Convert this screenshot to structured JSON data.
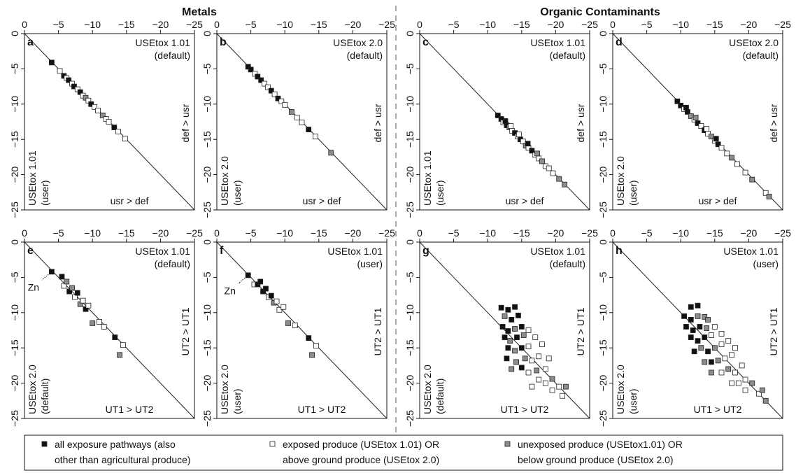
{
  "headings": {
    "left": "Metals",
    "right": "Organic Contaminants"
  },
  "colors": {
    "black": "#111111",
    "white": "#ffffff",
    "gray": "#8c8c8c",
    "line": "#222222"
  },
  "axis": {
    "xticks": [
      0,
      -5,
      -10,
      -15,
      -20,
      -25
    ],
    "yticks": [
      0,
      -5,
      -10,
      -15,
      -20,
      -25
    ],
    "xlim": [
      0,
      -25
    ],
    "ylim": [
      0,
      -25
    ]
  },
  "legend": {
    "items": [
      {
        "marker": "black",
        "line1": "all exposure pathways (also",
        "line2": "other than agricultural produce)"
      },
      {
        "marker": "white",
        "line1": "exposed produce (USEtox 1.01) OR",
        "line2": "above ground produce (USEtox 2.0)"
      },
      {
        "marker": "gray",
        "line1": "unexposed produce (USEtox1.01) OR",
        "line2": "below ground produce (USEtox 2.0)"
      }
    ]
  },
  "chart_data": [
    {
      "type": "scatter",
      "letter": "a",
      "group": "metals",
      "xlabel1": "USEtox 1.01",
      "xlabel2": "(default)",
      "ylabel1": "USEtox 1.01",
      "ylabel2": "(user)",
      "above_label": "def > usr",
      "below_label": "usr > def",
      "points": [
        [
          -4,
          -4.1,
          "black"
        ],
        [
          -5.2,
          -5.3,
          "white"
        ],
        [
          -5.8,
          -6,
          "black"
        ],
        [
          -6.2,
          -6.3,
          "white"
        ],
        [
          -6.5,
          -6.6,
          "black"
        ],
        [
          -7,
          -7.1,
          "white"
        ],
        [
          -7.3,
          -7.5,
          "black"
        ],
        [
          -7.8,
          -7.9,
          "white"
        ],
        [
          -8.2,
          -8.3,
          "black"
        ],
        [
          -8.6,
          -8.8,
          "white"
        ],
        [
          -9,
          -9.1,
          "gray"
        ],
        [
          -9.4,
          -9.5,
          "white"
        ],
        [
          -9.8,
          -10,
          "black"
        ],
        [
          -10.3,
          -10.4,
          "white"
        ],
        [
          -10.8,
          -10.9,
          "white"
        ],
        [
          -11.5,
          -11.6,
          "gray"
        ],
        [
          -12,
          -12.1,
          "white"
        ],
        [
          -12.4,
          -12.5,
          "white"
        ],
        [
          -13.2,
          -13.3,
          "black"
        ],
        [
          -13.8,
          -13.9,
          "white"
        ],
        [
          -14.8,
          -14.9,
          "white"
        ]
      ]
    },
    {
      "type": "scatter",
      "letter": "b",
      "group": "metals",
      "xlabel1": "USEtox 2.0",
      "xlabel2": "(default)",
      "ylabel1": "USEtox 2.0",
      "ylabel2": "(user)",
      "above_label": "def > usr",
      "below_label": "usr > def",
      "points": [
        [
          -4.6,
          -4.7,
          "black"
        ],
        [
          -5,
          -5.1,
          "black"
        ],
        [
          -5.6,
          -5.7,
          "white"
        ],
        [
          -6,
          -6.1,
          "black"
        ],
        [
          -6.5,
          -6.6,
          "black"
        ],
        [
          -7,
          -7.1,
          "white"
        ],
        [
          -7.5,
          -7.6,
          "white"
        ],
        [
          -8,
          -8.1,
          "black"
        ],
        [
          -8.5,
          -8.6,
          "white"
        ],
        [
          -9,
          -9.2,
          "black"
        ],
        [
          -9.5,
          -9.6,
          "white"
        ],
        [
          -10,
          -10.1,
          "white"
        ],
        [
          -11,
          -11.1,
          "gray"
        ],
        [
          -11.8,
          -11.9,
          "white"
        ],
        [
          -12.5,
          -12.6,
          "white"
        ],
        [
          -13.5,
          -13.6,
          "black"
        ],
        [
          -14.5,
          -14.6,
          "white"
        ],
        [
          -16.8,
          -16.9,
          "gray"
        ]
      ]
    },
    {
      "type": "scatter",
      "letter": "c",
      "group": "organic",
      "xlabel1": "USEtox 1.01",
      "xlabel2": "(default)",
      "ylabel1": "USEtox 1.01",
      "ylabel2": "(user)",
      "above_label": "def > usr",
      "below_label": "usr > def",
      "points": [
        [
          -11.5,
          -11.6,
          "black"
        ],
        [
          -12,
          -12.1,
          "black"
        ],
        [
          -12.3,
          -12.6,
          "white"
        ],
        [
          -12.8,
          -13,
          "black"
        ],
        [
          -13.2,
          -13.3,
          "gray"
        ],
        [
          -13.6,
          -13.8,
          "white"
        ],
        [
          -14,
          -14.1,
          "black"
        ],
        [
          -14.4,
          -14.6,
          "white"
        ],
        [
          -14.8,
          -15,
          "black"
        ],
        [
          -15.2,
          -15.3,
          "white"
        ],
        [
          -15.6,
          -15.9,
          "gray"
        ],
        [
          -16,
          -16.2,
          "white"
        ],
        [
          -16.5,
          -16.6,
          "black"
        ],
        [
          -17,
          -17.2,
          "white"
        ],
        [
          -17.5,
          -17.7,
          "white"
        ],
        [
          -18,
          -18.1,
          "gray"
        ],
        [
          -18.5,
          -18.8,
          "white"
        ],
        [
          -19,
          -19.1,
          "white"
        ],
        [
          -19.6,
          -19.8,
          "white"
        ],
        [
          -20.5,
          -20.6,
          "gray"
        ],
        [
          -21.3,
          -21.4,
          "gray"
        ],
        [
          -12.6,
          -12.4,
          "black"
        ],
        [
          -13.4,
          -13.1,
          "white"
        ],
        [
          -14.6,
          -14.3,
          "white"
        ],
        [
          -15.9,
          -15.6,
          "black"
        ],
        [
          -17.3,
          -17,
          "gray"
        ]
      ]
    },
    {
      "type": "scatter",
      "letter": "d",
      "group": "organic",
      "xlabel1": "USEtox 2.0",
      "xlabel2": "(default)",
      "ylabel1": "USEtox 2.0",
      "ylabel2": "(user)",
      "above_label": "def > usr",
      "below_label": "usr > def",
      "points": [
        [
          -9.5,
          -9.6,
          "black"
        ],
        [
          -10,
          -10.2,
          "black"
        ],
        [
          -10.5,
          -10.7,
          "white"
        ],
        [
          -11,
          -11.1,
          "black"
        ],
        [
          -11.5,
          -11.7,
          "gray"
        ],
        [
          -12,
          -12.2,
          "white"
        ],
        [
          -12.5,
          -12.7,
          "black"
        ],
        [
          -13,
          -13.1,
          "white"
        ],
        [
          -13.5,
          -13.7,
          "black"
        ],
        [
          -14,
          -14.2,
          "white"
        ],
        [
          -14.5,
          -14.6,
          "gray"
        ],
        [
          -15,
          -15.2,
          "white"
        ],
        [
          -15.5,
          -15.7,
          "black"
        ],
        [
          -16,
          -16.2,
          "white"
        ],
        [
          -16.8,
          -17,
          "white"
        ],
        [
          -17.5,
          -17.6,
          "gray"
        ],
        [
          -18.3,
          -18.5,
          "white"
        ],
        [
          -19.5,
          -19.7,
          "white"
        ],
        [
          -20.5,
          -20.7,
          "gray"
        ],
        [
          -22.5,
          -22.6,
          "white"
        ],
        [
          -23,
          -23.1,
          "gray"
        ],
        [
          -10.8,
          -10.5,
          "black"
        ],
        [
          -12.2,
          -11.9,
          "gray"
        ],
        [
          -13.8,
          -13.5,
          "white"
        ],
        [
          -15.2,
          -14.9,
          "black"
        ]
      ]
    },
    {
      "type": "scatter",
      "letter": "e",
      "group": "metals",
      "xlabel1": "USEtox 1.01",
      "xlabel2": "(default)",
      "ylabel1": "USEtox 2.0",
      "ylabel2": "(default)",
      "above_label": "UT2 > UT1",
      "below_label": "UT1 > UT2",
      "annotation": "Zn",
      "annotation_point": [
        -4,
        -4.2
      ],
      "points": [
        [
          -4,
          -4.2,
          "black"
        ],
        [
          -5.5,
          -4.9,
          "black"
        ],
        [
          -5.8,
          -6.2,
          "white"
        ],
        [
          -6.2,
          -5.6,
          "gray"
        ],
        [
          -6.6,
          -7,
          "black"
        ],
        [
          -7,
          -6.5,
          "gray"
        ],
        [
          -7.4,
          -7.8,
          "white"
        ],
        [
          -7.8,
          -7.2,
          "black"
        ],
        [
          -8.2,
          -8.8,
          "gray"
        ],
        [
          -8.6,
          -8.3,
          "white"
        ],
        [
          -9,
          -9.5,
          "black"
        ],
        [
          -9.4,
          -9,
          "white"
        ],
        [
          -10,
          -11.5,
          "gray"
        ],
        [
          -11,
          -11.3,
          "white"
        ],
        [
          -11.7,
          -12,
          "white"
        ],
        [
          -13.3,
          -13.5,
          "black"
        ],
        [
          -14.5,
          -14.6,
          "white"
        ],
        [
          -14,
          -16,
          "gray"
        ]
      ]
    },
    {
      "type": "scatter",
      "letter": "f",
      "group": "metals",
      "xlabel1": "USEtox 1.01",
      "xlabel2": "(user)",
      "ylabel1": "USEtox 2.0",
      "ylabel2": "(user)",
      "above_label": "UT2 > UT1",
      "below_label": "UT1 > UT2",
      "annotation": "Zn",
      "annotation_point": [
        -4.6,
        -4.7
      ],
      "points": [
        [
          -4.6,
          -4.7,
          "black"
        ],
        [
          -5.5,
          -6,
          "white"
        ],
        [
          -6,
          -6,
          "black"
        ],
        [
          -6.4,
          -5.6,
          "black"
        ],
        [
          -6.8,
          -7,
          "black"
        ],
        [
          -7.2,
          -6.6,
          "black"
        ],
        [
          -7.6,
          -7.8,
          "white"
        ],
        [
          -8,
          -7.6,
          "black"
        ],
        [
          -8.4,
          -8.6,
          "gray"
        ],
        [
          -8.8,
          -8.4,
          "white"
        ],
        [
          -9.2,
          -9.6,
          "white"
        ],
        [
          -9.8,
          -9.2,
          "white"
        ],
        [
          -10.5,
          -11.5,
          "gray"
        ],
        [
          -11.5,
          -11.8,
          "white"
        ],
        [
          -13.5,
          -13.6,
          "black"
        ],
        [
          -14.6,
          -14.7,
          "white"
        ],
        [
          -14,
          -16,
          "gray"
        ]
      ]
    },
    {
      "type": "scatter",
      "letter": "g",
      "group": "organic",
      "xlabel1": "USEtox 1.01",
      "xlabel2": "(default)",
      "ylabel1": "USEtox 2.0",
      "ylabel2": "(default)",
      "above_label": "UT2 > UT1",
      "below_label": "UT1 > UT2",
      "points": [
        [
          -12,
          -9.3,
          "black"
        ],
        [
          -13,
          -9.6,
          "black"
        ],
        [
          -14,
          -9.2,
          "black"
        ],
        [
          -12.5,
          -10.5,
          "gray"
        ],
        [
          -13.5,
          -11,
          "black"
        ],
        [
          -14.5,
          -10.4,
          "black"
        ],
        [
          -12.2,
          -12,
          "black"
        ],
        [
          -13,
          -12.6,
          "black"
        ],
        [
          -14,
          -12.3,
          "gray"
        ],
        [
          -15,
          -12,
          "black"
        ],
        [
          -12.5,
          -13.5,
          "black"
        ],
        [
          -13.3,
          -14,
          "gray"
        ],
        [
          -14.3,
          -13.5,
          "black"
        ],
        [
          -15.3,
          -13.2,
          "gray"
        ],
        [
          -16,
          -12.5,
          "white"
        ],
        [
          -13,
          -15,
          "black"
        ],
        [
          -14,
          -15.4,
          "gray"
        ],
        [
          -15,
          -15,
          "black"
        ],
        [
          -16,
          -14.8,
          "white"
        ],
        [
          -17,
          -13.5,
          "white"
        ],
        [
          -14.2,
          -17,
          "gray"
        ],
        [
          -15.5,
          -16.5,
          "gray"
        ],
        [
          -16.5,
          -16.8,
          "white"
        ],
        [
          -17.5,
          -16.2,
          "white"
        ],
        [
          -18,
          -14.5,
          "white"
        ],
        [
          -13.5,
          -18,
          "gray"
        ],
        [
          -16,
          -18.5,
          "white"
        ],
        [
          -17.2,
          -18.2,
          "gray"
        ],
        [
          -18.5,
          -18,
          "white"
        ],
        [
          -19,
          -16.5,
          "white"
        ],
        [
          -17.5,
          -19.5,
          "white"
        ],
        [
          -18.5,
          -20,
          "white"
        ],
        [
          -19.5,
          -19.4,
          "gray"
        ],
        [
          -20.5,
          -20.5,
          "white"
        ],
        [
          -19.5,
          -21,
          "white"
        ],
        [
          -21,
          -21.8,
          "white"
        ],
        [
          -21.5,
          -20.5,
          "gray"
        ],
        [
          -15,
          -17.8,
          "black"
        ],
        [
          -16.5,
          -20.5,
          "white"
        ],
        [
          -12.8,
          -16.5,
          "black"
        ]
      ]
    },
    {
      "type": "scatter",
      "letter": "h",
      "group": "organic",
      "xlabel1": "USEtox 1.01",
      "xlabel2": "(user)",
      "ylabel1": "USEtox 2.0",
      "ylabel2": "(user)",
      "above_label": "UT2 > UT1",
      "below_label": "UT1 > UT2",
      "points": [
        [
          -11.5,
          -9.2,
          "black"
        ],
        [
          -12.5,
          -9,
          "black"
        ],
        [
          -10.5,
          -10.5,
          "black"
        ],
        [
          -11.5,
          -11,
          "black"
        ],
        [
          -12.5,
          -10.5,
          "gray"
        ],
        [
          -13.5,
          -10.6,
          "gray"
        ],
        [
          -14,
          -11,
          "gray"
        ],
        [
          -10.8,
          -12,
          "black"
        ],
        [
          -11.8,
          -12.5,
          "black"
        ],
        [
          -12.8,
          -12,
          "black"
        ],
        [
          -13.8,
          -12.2,
          "gray"
        ],
        [
          -15,
          -12,
          "white"
        ],
        [
          -11.5,
          -13.5,
          "black"
        ],
        [
          -12.5,
          -14,
          "black"
        ],
        [
          -13.5,
          -13.5,
          "black"
        ],
        [
          -14.5,
          -13.2,
          "white"
        ],
        [
          -16,
          -13,
          "white"
        ],
        [
          -12,
          -15.5,
          "black"
        ],
        [
          -13,
          -15,
          "gray"
        ],
        [
          -14,
          -15.5,
          "black"
        ],
        [
          -15,
          -15,
          "gray"
        ],
        [
          -16,
          -14.5,
          "white"
        ],
        [
          -17,
          -14,
          "white"
        ],
        [
          -13.5,
          -17,
          "gray"
        ],
        [
          -14.5,
          -17,
          "black"
        ],
        [
          -15.5,
          -16.8,
          "gray"
        ],
        [
          -16.5,
          -16.5,
          "white"
        ],
        [
          -17.5,
          -16,
          "white"
        ],
        [
          -18,
          -15,
          "white"
        ],
        [
          -14.5,
          -18.5,
          "gray"
        ],
        [
          -16,
          -18.5,
          "white"
        ],
        [
          -17,
          -18,
          "gray"
        ],
        [
          -18,
          -18.5,
          "white"
        ],
        [
          -19,
          -17.5,
          "white"
        ],
        [
          -17.5,
          -20,
          "white"
        ],
        [
          -18.5,
          -20,
          "white"
        ],
        [
          -19.5,
          -19.5,
          "white"
        ],
        [
          -20.5,
          -20,
          "gray"
        ],
        [
          -19.5,
          -21,
          "white"
        ],
        [
          -21.5,
          -21.5,
          "white"
        ],
        [
          -22,
          -21,
          "gray"
        ],
        [
          -22.5,
          -22.5,
          "gray"
        ]
      ]
    }
  ]
}
